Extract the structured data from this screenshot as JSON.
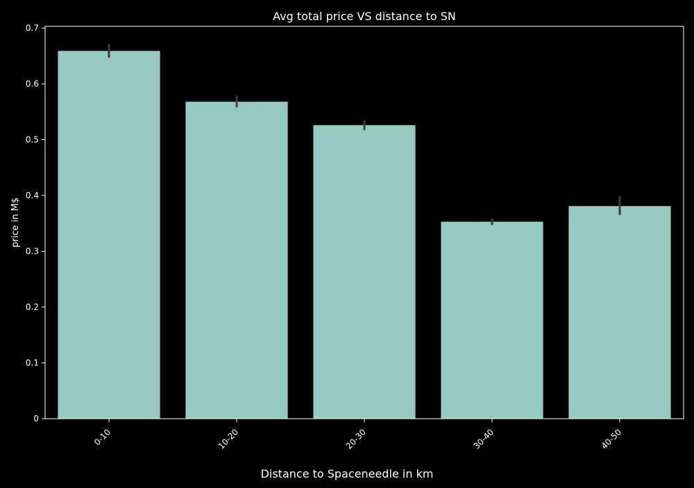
{
  "chart_data": {
    "type": "bar",
    "title": "Avg total price VS distance to SN",
    "xlabel": "Distance to Spaceneedle in km",
    "ylabel": "price in M$",
    "categories": [
      "0-10",
      "10-20",
      "20-30",
      "30-40",
      "40-50"
    ],
    "values": [
      0.659,
      0.568,
      0.526,
      0.353,
      0.381
    ],
    "error_low": [
      0.647,
      0.558,
      0.517,
      0.347,
      0.365
    ],
    "error_high": [
      0.671,
      0.579,
      0.535,
      0.359,
      0.399
    ],
    "yticks": [
      0,
      0.1,
      0.2,
      0.3,
      0.4,
      0.5,
      0.6,
      0.7
    ],
    "ytick_labels": [
      "0",
      "0.1",
      "0.2",
      "0.3",
      "0.4",
      "0.5",
      "0.6",
      "0.7"
    ],
    "ylim": [
      0,
      0.703
    ],
    "grid": false,
    "legend": "none",
    "colors": {
      "background": "#000000",
      "bar": "#96c9c0",
      "errorbar": "#3d3d3d",
      "axis": "#ffffff",
      "text": "#ffffff"
    }
  }
}
